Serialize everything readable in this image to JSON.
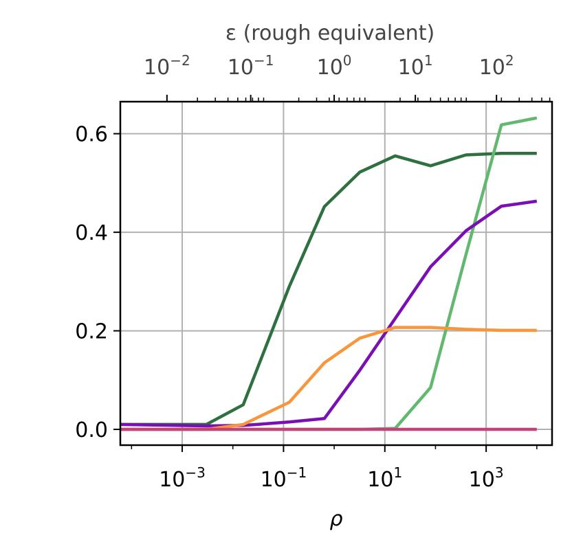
{
  "chart_data": {
    "type": "line",
    "xlabel": "ρ",
    "x_scale": "log",
    "xlim": [
      6e-05,
      20000
    ],
    "ylim": [
      -0.032,
      0.665
    ],
    "grid": true,
    "legend": "none",
    "x_ticks": [
      0.001,
      0.1,
      10,
      1000
    ],
    "x_tick_labels": [
      {
        "base": "10",
        "exp": "−3"
      },
      {
        "base": "10",
        "exp": "−1"
      },
      {
        "base": "10",
        "exp": "1"
      },
      {
        "base": "10",
        "exp": "3"
      }
    ],
    "y_ticks": [
      0.0,
      0.2,
      0.4,
      0.6
    ],
    "y_tick_labels": [
      "0.0",
      "0.2",
      "0.4",
      "0.6"
    ],
    "top_axis": {
      "label": "ε (rough equivalent)",
      "ticks_at_rho": [
        0.0005,
        0.0225,
        1,
        40,
        1600
      ],
      "tick_labels": [
        {
          "base": "10",
          "exp": "−2"
        },
        {
          "base": "10",
          "exp": "−1"
        },
        {
          "base": "10",
          "exp": "0"
        },
        {
          "base": "10",
          "exp": "1"
        },
        {
          "base": "10",
          "exp": "2"
        }
      ]
    },
    "series": [
      {
        "color": "#2e7040",
        "x": [
          6e-05,
          0.003,
          0.016,
          0.13,
          0.64,
          3.2,
          16,
          80,
          400,
          2000,
          10000
        ],
        "y": [
          0.01,
          0.01,
          0.05,
          0.29,
          0.452,
          0.522,
          0.555,
          0.535,
          0.557,
          0.56,
          0.56
        ]
      },
      {
        "color": "#63b870",
        "x": [
          6e-05,
          0.003,
          0.016,
          0.13,
          0.64,
          3.2,
          16,
          80,
          400,
          2000,
          10000
        ],
        "y": [
          0.0,
          0.0,
          0.0,
          0.0,
          0.0,
          0.0,
          0.002,
          0.085,
          0.355,
          0.618,
          0.632
        ]
      },
      {
        "color": "#7a10b3",
        "x": [
          6e-05,
          0.003,
          0.016,
          0.13,
          0.64,
          3.2,
          16,
          80,
          400,
          2000,
          10000
        ],
        "y": [
          0.01,
          0.007,
          0.008,
          0.015,
          0.022,
          0.12,
          0.225,
          0.33,
          0.403,
          0.453,
          0.463
        ]
      },
      {
        "color": "#f8963c",
        "x": [
          6e-05,
          0.003,
          0.016,
          0.13,
          0.64,
          3.2,
          16,
          80,
          400,
          2000,
          10000
        ],
        "y": [
          0.0,
          0.0,
          0.01,
          0.055,
          0.135,
          0.185,
          0.207,
          0.207,
          0.203,
          0.201,
          0.201
        ]
      },
      {
        "color": "#c8407a",
        "x": [
          6e-05,
          0.003,
          0.016,
          0.13,
          0.64,
          3.2,
          16,
          80,
          400,
          2000,
          10000
        ],
        "y": [
          0.0,
          0.0,
          0.0,
          0.0,
          0.0,
          0.0,
          0.0,
          0.0,
          0.0,
          0.0,
          0.0
        ]
      }
    ]
  }
}
